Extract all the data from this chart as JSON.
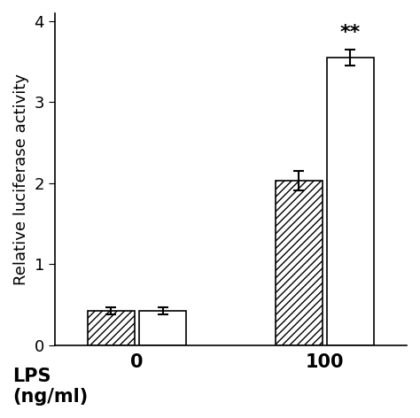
{
  "groups": [
    "0",
    "100"
  ],
  "bar_values": [
    [
      0.42,
      0.42
    ],
    [
      2.03,
      3.55
    ]
  ],
  "bar_errors": [
    [
      0.04,
      0.04
    ],
    [
      0.12,
      0.1
    ]
  ],
  "hatch_pattern": "////",
  "bar_width": 0.4,
  "group_centers": [
    1.0,
    2.6
  ],
  "ylim": [
    0,
    4.1
  ],
  "yticks": [
    0,
    1,
    2,
    3,
    4
  ],
  "ylabel": "Relative luciferase activity",
  "xlabel_line1": "LPS",
  "xlabel_line2": "(ng/ml)",
  "significance_label": "**",
  "background_color": "#ffffff",
  "bar_edge_color": "#000000",
  "error_color": "#000000",
  "ylabel_fontsize": 13,
  "tick_fontsize": 13,
  "group_label_fontsize": 15,
  "sig_fontsize": 16,
  "lps_label_fontsize": 15
}
